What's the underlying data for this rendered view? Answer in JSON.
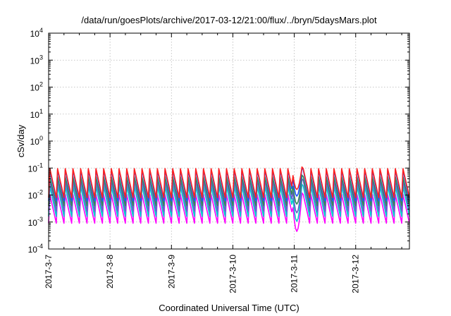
{
  "chart_data": {
    "type": "line",
    "title": "/data/run/goesPlots/archive/2017-03-12/21:00/flux/../bryn/5daysMars.plot",
    "xlabel": "Coordinated Universal Time (UTC)",
    "ylabel": "cSv/day",
    "x_tick_labels": [
      "2017-3-7",
      "2017-3-8",
      "2017-3-9",
      "2017-3-10",
      "2017-3-11",
      "2017-3-12"
    ],
    "y_tick_labels": [
      {
        "base": "10",
        "exp": "-4"
      },
      {
        "base": "10",
        "exp": "-3"
      },
      {
        "base": "10",
        "exp": "-2"
      },
      {
        "base": "10",
        "exp": "-1"
      },
      {
        "base": "10",
        "exp": "0"
      },
      {
        "base": "10",
        "exp": "1"
      },
      {
        "base": "10",
        "exp": "2"
      },
      {
        "base": "10",
        "exp": "3"
      },
      {
        "base": "10",
        "exp": "4"
      }
    ],
    "x_range_days": [
      "2017-03-07",
      "2017-03-12 21:00"
    ],
    "y_scale": "log",
    "ylim": [
      0.0001,
      10000
    ],
    "grid": true,
    "legend": "none",
    "sawtooth": {
      "teeth_per_day": 8,
      "peak_value": 0.1,
      "dip": {
        "start": "2017-03-10 23:00",
        "end": "2017-03-11 03:00"
      }
    },
    "series": [
      {
        "color": "#ff00ff",
        "min": 0.0009,
        "max": 0.012
      },
      {
        "color": "#00cccc",
        "min": 0.0016,
        "max": 0.025
      },
      {
        "color": "#6a5acd",
        "min": 0.0025,
        "max": 0.04
      },
      {
        "color": "#2e8b57",
        "min": 0.004,
        "max": 0.055
      },
      {
        "color": "#1e4fff",
        "min": 0.006,
        "max": 0.1
      },
      {
        "color": "#ff2020",
        "min": 0.008,
        "max": 0.11
      }
    ]
  }
}
